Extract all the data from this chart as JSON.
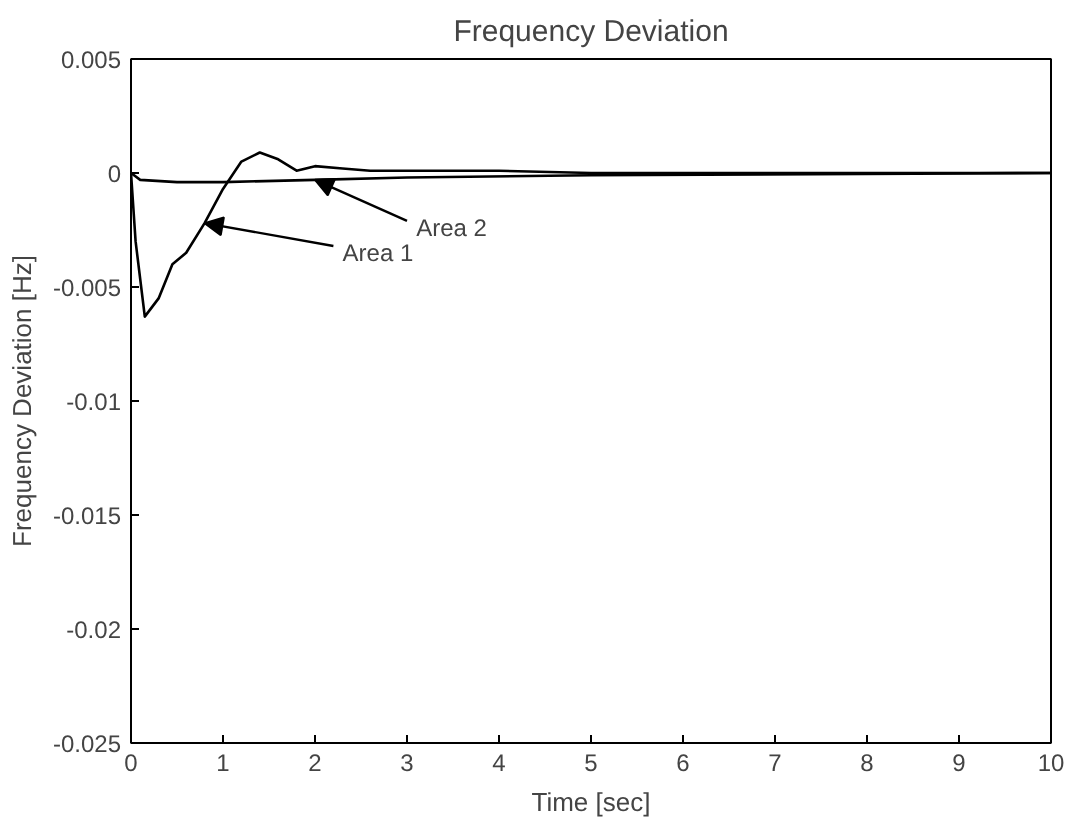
{
  "chart_data": {
    "type": "line",
    "title": "Frequency Deviation",
    "xlabel": "Time [sec]",
    "ylabel": "Frequency Deviation [Hz]",
    "xlim": [
      0,
      10
    ],
    "ylim": [
      -0.025,
      0.005
    ],
    "xticks": [
      0,
      1,
      2,
      3,
      4,
      5,
      6,
      7,
      8,
      9,
      10
    ],
    "yticks": [
      {
        "value": -0.025,
        "label": "-0.025"
      },
      {
        "value": -0.02,
        "label": "-0.02"
      },
      {
        "value": -0.015,
        "label": "-0.015"
      },
      {
        "value": -0.01,
        "label": "-0.01"
      },
      {
        "value": -0.005,
        "label": "-0.005"
      },
      {
        "value": 0,
        "label": "0"
      },
      {
        "value": 0.005,
        "label": "0.005"
      }
    ],
    "grid": false,
    "marker": "none",
    "line_style": "solid",
    "series": [
      {
        "color": "#000000",
        "x": [
          0,
          0.05,
          0.15,
          0.3,
          0.45,
          0.6,
          0.8,
          1.0,
          1.2,
          1.4,
          1.6,
          1.8,
          2.0,
          2.3,
          2.6,
          3,
          4,
          5,
          10
        ],
        "values": [
          0,
          -0.003,
          -0.0063,
          -0.0055,
          -0.004,
          -0.0035,
          -0.0022,
          -0.0007,
          0.0005,
          0.0009,
          0.0006,
          0.0001,
          0.0003,
          0.0002,
          0.0001,
          0.0001,
          0.0001,
          0,
          0
        ]
      },
      {
        "color": "#000000",
        "x": [
          0,
          0.1,
          0.5,
          1,
          2,
          3,
          5,
          10
        ],
        "values": [
          0,
          -0.0003,
          -0.0004,
          -0.0004,
          -0.0003,
          -0.0002,
          -0.0001,
          0
        ]
      }
    ],
    "annotations": [
      {
        "text": "Area 2",
        "x": 2,
        "y": -0.0003
      },
      {
        "text": "Area 1",
        "x": 0.8,
        "y": -0.0022
      }
    ]
  }
}
